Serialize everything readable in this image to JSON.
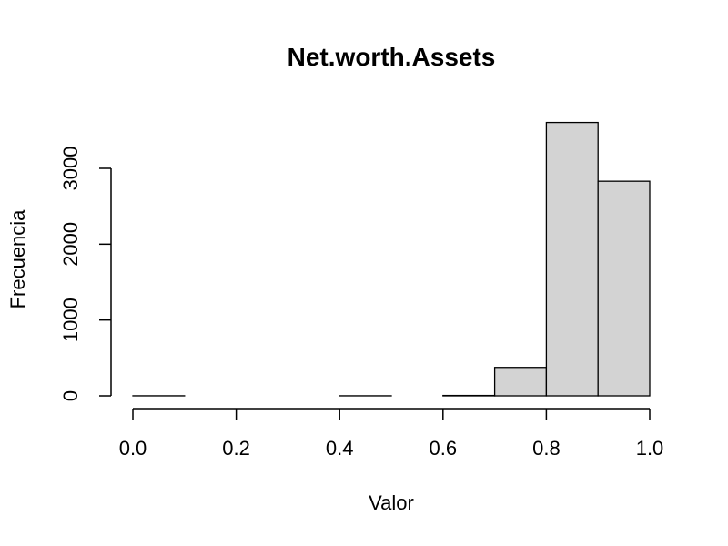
{
  "chart_data": {
    "type": "bar",
    "title": "Net.worth.Assets",
    "xlabel": "Valor",
    "ylabel": "Frecuencia",
    "bin_edges": [
      0.0,
      0.1,
      0.2,
      0.3,
      0.4,
      0.5,
      0.6,
      0.7,
      0.8,
      0.9,
      1.0
    ],
    "values": [
      1,
      0,
      0,
      0,
      1,
      0,
      5,
      375,
      3605,
      2830
    ],
    "xlim": [
      0.0,
      1.0
    ],
    "ylim": [
      0,
      3600
    ],
    "x_ticks": [
      "0.0",
      "0.2",
      "0.4",
      "0.6",
      "0.8",
      "1.0"
    ],
    "y_ticks": [
      "0",
      "1000",
      "2000",
      "3000"
    ],
    "bar_color": "#d3d3d3",
    "grid": false
  }
}
